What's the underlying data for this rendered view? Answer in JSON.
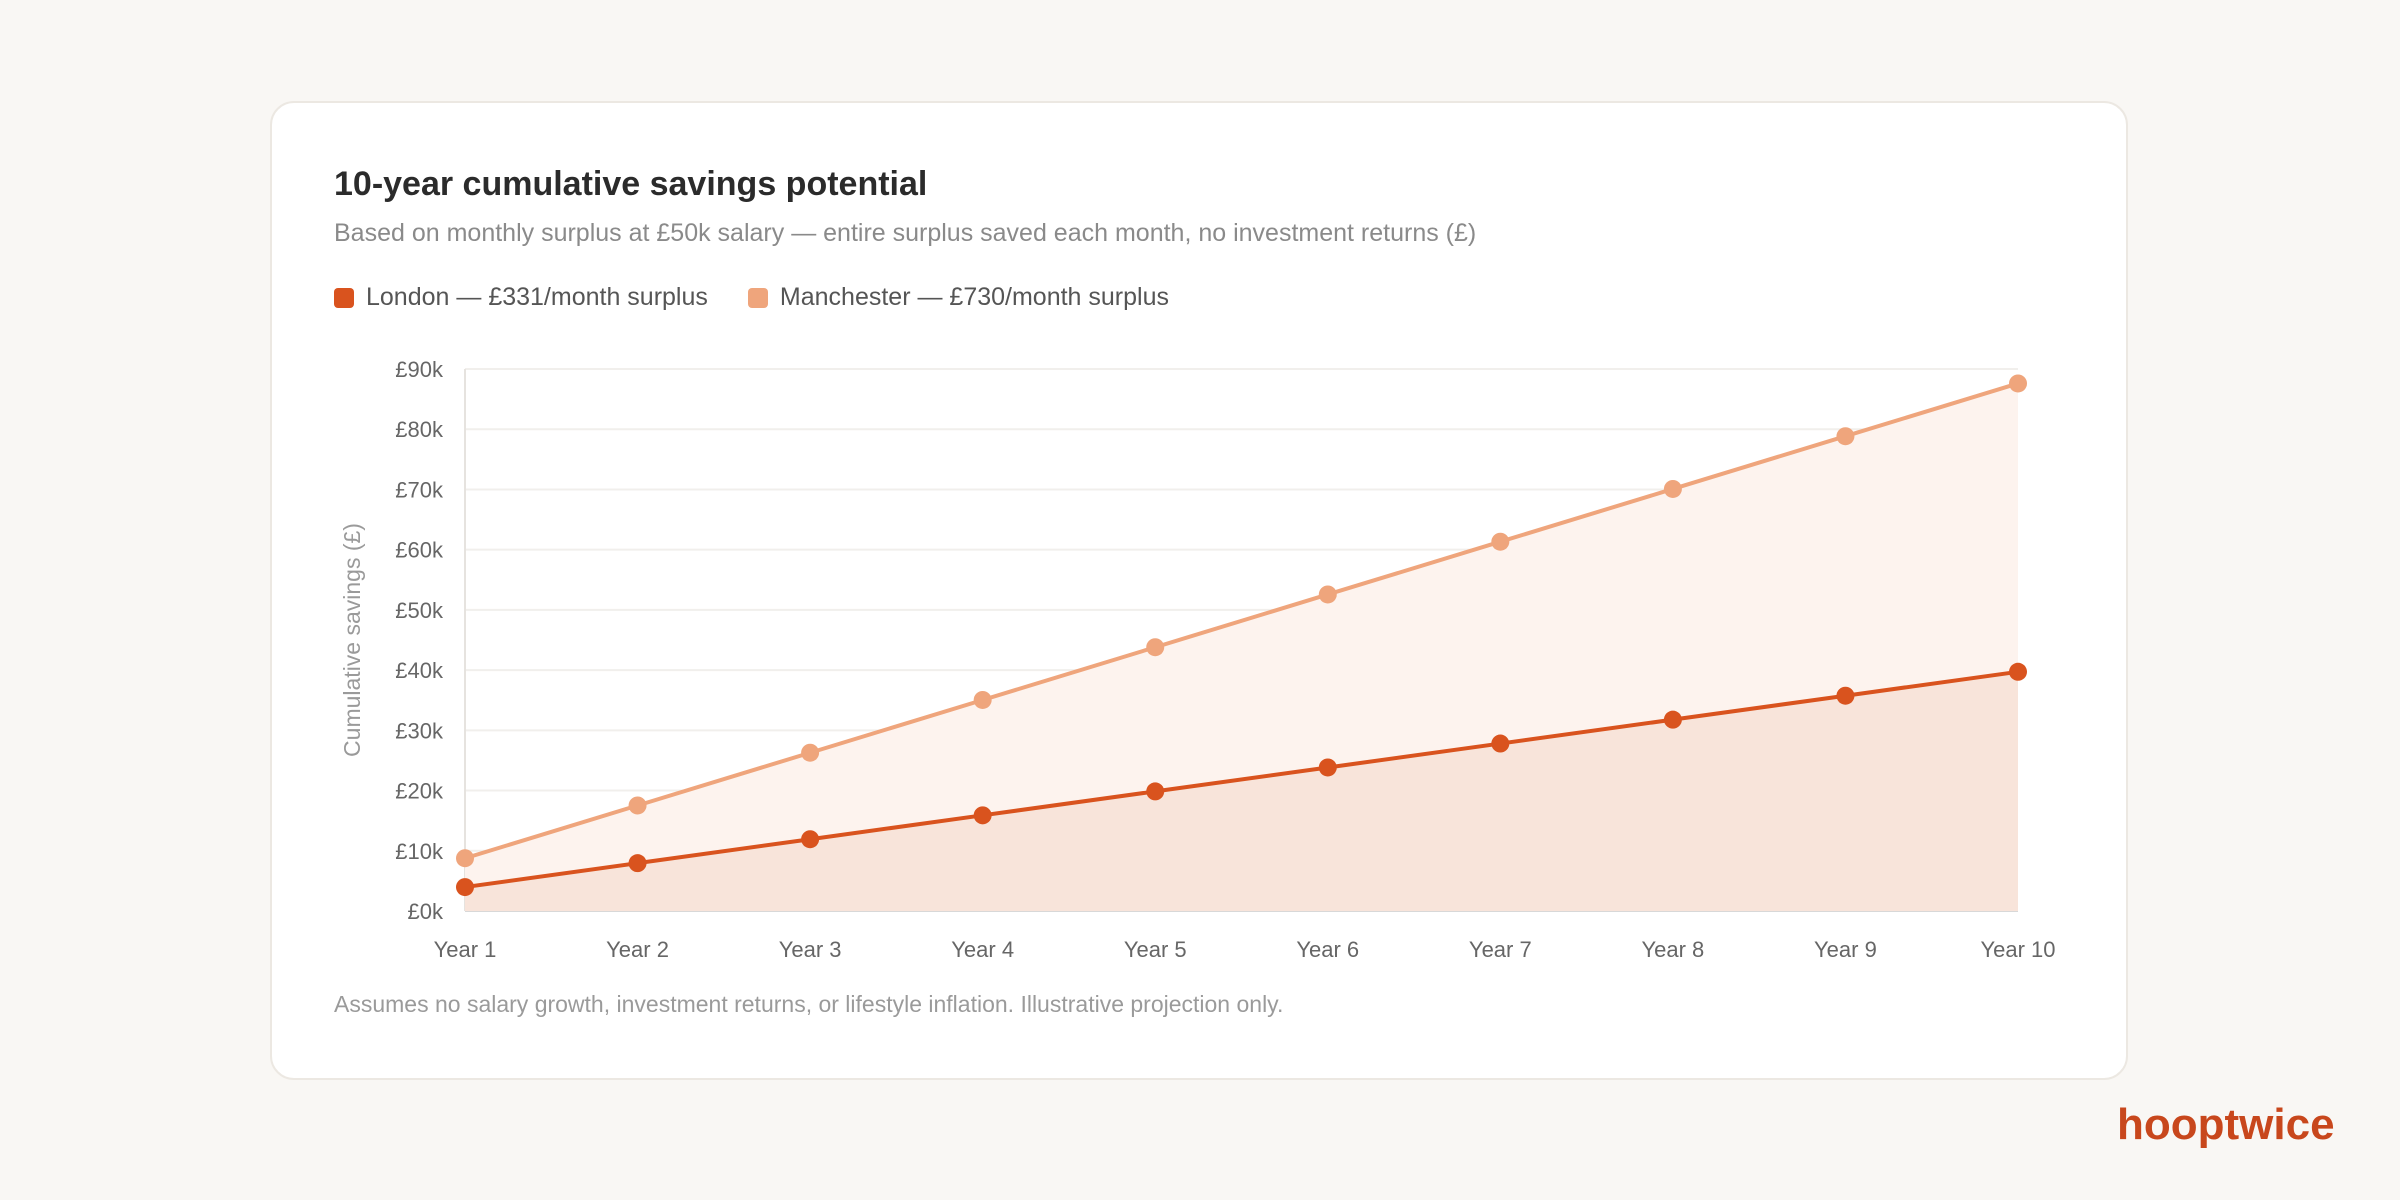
{
  "chart_data": {
    "type": "area",
    "title": "10-year cumulative savings potential",
    "subtitle": "Based on monthly surplus at £50k salary — entire surplus saved each month, no investment returns (£)",
    "categories": [
      "Year 1",
      "Year 2",
      "Year 3",
      "Year 4",
      "Year 5",
      "Year 6",
      "Year 7",
      "Year 8",
      "Year 9",
      "Year 10"
    ],
    "series": [
      {
        "name": "London — £331/month surplus",
        "color": "#d9531e",
        "values": [
          3972,
          7944,
          11916,
          15888,
          19860,
          23832,
          27804,
          31776,
          35748,
          39720
        ]
      },
      {
        "name": "Manchester — £730/month surplus",
        "color": "#efa57c",
        "values": [
          8760,
          17520,
          26280,
          35040,
          43800,
          52560,
          61320,
          70080,
          78840,
          87600
        ]
      }
    ],
    "ylabel": "Cumulative savings (£)",
    "xlabel": "",
    "ylim": [
      0,
      90000
    ],
    "yticks": [
      0,
      10000,
      20000,
      30000,
      40000,
      50000,
      60000,
      70000,
      80000,
      90000
    ],
    "ytick_labels": [
      "£0k",
      "£10k",
      "£20k",
      "£30k",
      "£40k",
      "£50k",
      "£60k",
      "£70k",
      "£80k",
      "£90k"
    ],
    "grid": true,
    "legend": "top-left",
    "footnote": "Assumes no salary growth, investment returns, or lifestyle inflation. Illustrative projection only."
  },
  "brand": "hooptwice"
}
